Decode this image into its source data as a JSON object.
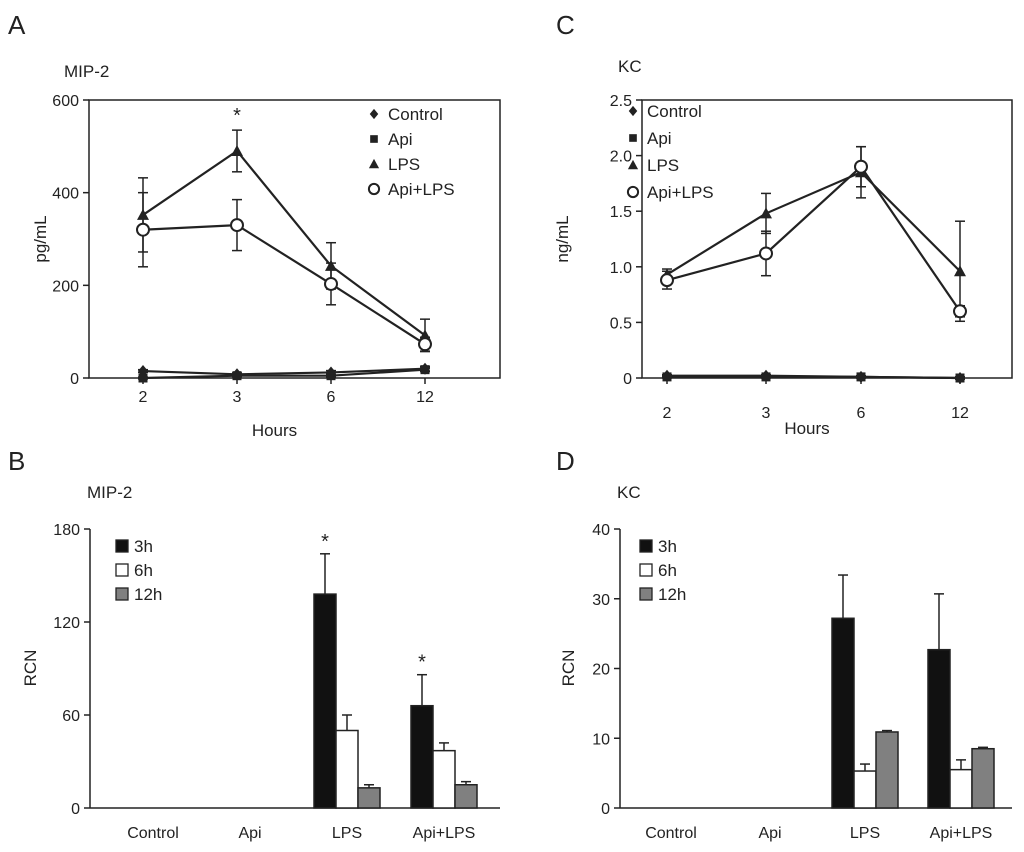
{
  "chart_data": [
    {
      "panel": "A",
      "type": "line",
      "title": "MIP-2",
      "ylabel": "pg/mL",
      "xlabel": "Hours",
      "categories": [
        "2",
        "3",
        "6",
        "12"
      ],
      "ylim": [
        0,
        600
      ],
      "yticks": [
        "0",
        "200",
        "400",
        "600"
      ],
      "legend_position": "top-right",
      "series": [
        {
          "name": "Control",
          "marker": "diamond",
          "values": [
            15,
            8,
            12,
            20
          ],
          "errors": [
            3,
            3,
            4,
            5
          ]
        },
        {
          "name": "Api",
          "marker": "square",
          "values": [
            0,
            5,
            5,
            18
          ],
          "errors": [
            2,
            2,
            3,
            4
          ]
        },
        {
          "name": "LPS",
          "marker": "triangle",
          "values": [
            352,
            490,
            242,
            92
          ],
          "errors": [
            80,
            45,
            50,
            35
          ]
        },
        {
          "name": "Api+LPS",
          "marker": "circle",
          "values": [
            320,
            330,
            203,
            73
          ],
          "errors": [
            80,
            55,
            45,
            15
          ]
        }
      ],
      "annotations": [
        {
          "text": "*",
          "category": "3"
        }
      ]
    },
    {
      "panel": "C",
      "type": "line",
      "title": "KC",
      "ylabel": "ng/mL",
      "xlabel": "Hours",
      "categories": [
        "2",
        "3",
        "6",
        "12"
      ],
      "ylim": [
        0,
        2.5
      ],
      "yticks": [
        "0",
        "0.5",
        "1.0",
        "1.5",
        "2.0",
        "2.5"
      ],
      "legend_position": "top-left",
      "series": [
        {
          "name": "Control",
          "marker": "diamond",
          "values": [
            0.02,
            0.02,
            0.01,
            0.0
          ],
          "errors": [
            0.01,
            0.01,
            0.01,
            0.01
          ]
        },
        {
          "name": "Api",
          "marker": "square",
          "values": [
            0.01,
            0.01,
            0.01,
            0.0
          ],
          "errors": [
            0.01,
            0.01,
            0.01,
            0.01
          ]
        },
        {
          "name": "LPS",
          "marker": "triangle",
          "values": [
            0.93,
            1.48,
            1.85,
            0.96
          ],
          "errors": [
            0.05,
            0.18,
            0.23,
            0.45
          ]
        },
        {
          "name": "Api+LPS",
          "marker": "circle",
          "values": [
            0.88,
            1.12,
            1.9,
            0.6
          ],
          "errors": [
            0.08,
            0.2,
            0.18,
            0.05
          ]
        }
      ]
    },
    {
      "panel": "B",
      "type": "bar",
      "title": "MIP-2",
      "ylabel": "RCN",
      "categories": [
        "Control",
        "Api",
        "LPS",
        "Api+LPS"
      ],
      "ylim": [
        0,
        180
      ],
      "yticks": [
        "0",
        "60",
        "120",
        "180"
      ],
      "legend_position": "top-left",
      "series": [
        {
          "name": "3h",
          "color": "#111111",
          "values": [
            0,
            0,
            138,
            66
          ],
          "errors": [
            0,
            0,
            26,
            20
          ]
        },
        {
          "name": "6h",
          "color": "#ffffff",
          "values": [
            0,
            0,
            50,
            37
          ],
          "errors": [
            0,
            0,
            10,
            5
          ]
        },
        {
          "name": "12h",
          "color": "#808080",
          "values": [
            0,
            0,
            13,
            15
          ],
          "errors": [
            0,
            0,
            2,
            2
          ]
        }
      ],
      "annotations": [
        {
          "text": "*",
          "category": "LPS"
        },
        {
          "text": "*",
          "category": "Api+LPS"
        }
      ]
    },
    {
      "panel": "D",
      "type": "bar",
      "title": "KC",
      "ylabel": "RCN",
      "categories": [
        "Control",
        "Api",
        "LPS",
        "Api+LPS"
      ],
      "ylim": [
        0,
        40
      ],
      "yticks": [
        "0",
        "10",
        "20",
        "30",
        "40"
      ],
      "legend_position": "top-left",
      "series": [
        {
          "name": "3h",
          "color": "#111111",
          "values": [
            0,
            0,
            27.2,
            22.7
          ],
          "errors": [
            0,
            0,
            6.2,
            8
          ]
        },
        {
          "name": "6h",
          "color": "#ffffff",
          "values": [
            0,
            0,
            5.3,
            5.5
          ],
          "errors": [
            0,
            0,
            1,
            1.4
          ]
        },
        {
          "name": "12h",
          "color": "#808080",
          "values": [
            0,
            0,
            10.9,
            8.5
          ],
          "errors": [
            0,
            0,
            0.2,
            0.2
          ]
        }
      ]
    }
  ]
}
